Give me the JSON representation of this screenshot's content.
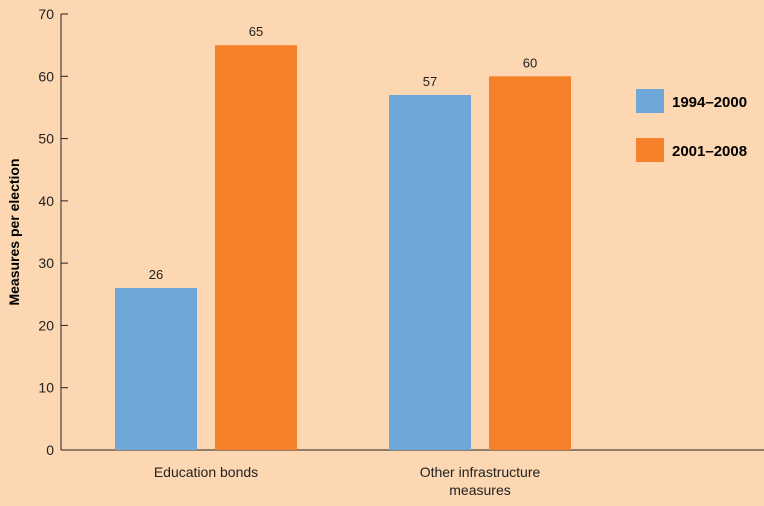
{
  "chart_data": {
    "type": "bar",
    "title": "",
    "xlabel": "",
    "ylabel": "Measures per election",
    "ylim": [
      0,
      70
    ],
    "yticks": [
      0,
      10,
      20,
      30,
      40,
      50,
      60,
      70
    ],
    "grid": false,
    "legend_position": "right",
    "categories": [
      [
        "Education bonds"
      ],
      [
        "Other infrastructure",
        "measures"
      ]
    ],
    "series": [
      {
        "name": "1994–2000",
        "color": "#6fa8d8",
        "values": [
          26,
          57
        ]
      },
      {
        "name": "2001–2008",
        "color": "#f5822a",
        "values": [
          65,
          60
        ]
      }
    ]
  }
}
